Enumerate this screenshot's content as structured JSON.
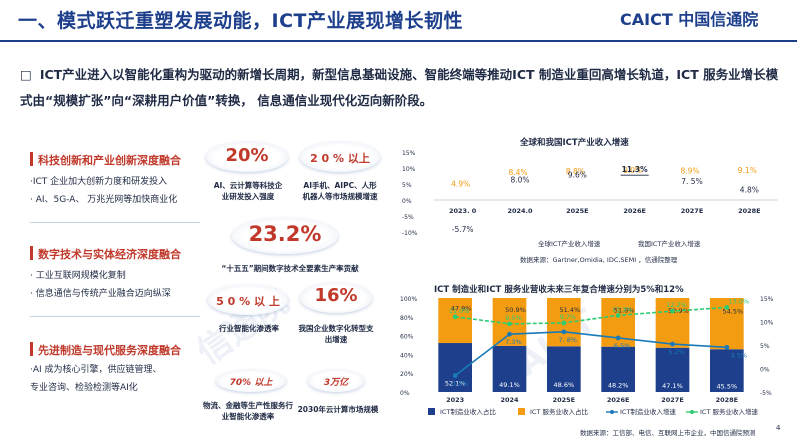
{
  "header": {
    "title": "一、模式跃迁重塑发展动能，ICT产业展现增长韧性",
    "brand": "CAICT 中国信通院"
  },
  "intro": {
    "bullet": "□",
    "text": "ICT产业进入以智能化重构为驱动的新增长周期，新型信息基础设施、智能终端等推动ICT 制造业重回高增长轨道，ICT 服务业增长模式由“规模扩张”向“深耕用户价值”转换， 信息通信业现代化迈向新阶段。"
  },
  "sections": [
    {
      "title": "科技创新和产业创新深度融合",
      "items": [
        "·ICT    企业加大创新力度和研发投入",
        "·  AI、5G-A、  万兆光网等加快商业化"
      ]
    },
    {
      "title": "数字技术与实体经济深度融合",
      "items": [
        "·  工业互联网规模化复制",
        "·  信息通信与传统产业融合迈向纵深"
      ]
    },
    {
      "title": "先进制造与现代服务深度融合",
      "items": [
        "·AI  成为核心引擎，供应链管理、",
        "   专业咨询、检验检测等AI化"
      ]
    }
  ],
  "stats": {
    "s1_value": "20%",
    "s1_caption": "AI、云计算等科技企业研发投入强度",
    "s2_value": "2 0 % 以上",
    "s2_caption": "AI手机、AIPC、人形机器人等市场规模增速",
    "s3_value": "23.2%",
    "s3_caption": "“十五五”期间数字技术全要素生产率贡献",
    "s4_value": "5 0 % 以 上",
    "s4_caption": "行业智能化渗透率",
    "s5_value": "16%",
    "s5_caption": "我国企业数字化转型支出增速",
    "s6_value": "70% 以上",
    "s6_caption": "物流、金融等生产性服务行业智能化渗透率",
    "s7_value": "3万亿",
    "s7_caption": "2030年云计算市场规模"
  },
  "watermarks": [
    "信通院",
    "CAICT"
  ],
  "page_number": "4",
  "colors": {
    "brand_blue": "#1d3f8c",
    "accent_red": "#c0392b",
    "orange": "#f39c12",
    "green": "#2ecc71"
  },
  "chart_data": [
    {
      "type": "table",
      "title": "全球和我国ICT产业收入增速",
      "categories": [
        "2023. 0",
        "2024.0",
        "2025E",
        "2026E",
        "2027E",
        "2028E"
      ],
      "y_tick_labels": [
        "15%",
        "10%",
        "5%",
        "0%",
        "-5%",
        "-10%"
      ],
      "ylim": [
        -10,
        15
      ],
      "series": [
        {
          "name": "全球ICT产业收入增速",
          "color": "#f39c12",
          "values": [
            4.9,
            8.4,
            8.8,
            9.0,
            8.9,
            9.1
          ],
          "labels": [
            "4.9%",
            "8.4%",
            "8.8%",
            "9.0%",
            "8.9%",
            "9.1%"
          ]
        },
        {
          "name": "我国ICT产业收入增速",
          "color": "#1f2a44",
          "values": [
            -5.7,
            8.0,
            9.6,
            11.3,
            7.5,
            4.8
          ],
          "labels": [
            "-5.7%",
            "8.0%",
            "9.6%",
            "11.3%",
            "7. 5%",
            "4.8%"
          ]
        }
      ],
      "source": "数据来源：Gartner,Omidia, IDC,SEMI ，信通院整理"
    },
    {
      "type": "bar",
      "title": "ICT 制造业和ICT 服务业营收未来三年复合增速分别为5%和12%",
      "categories": [
        "2023",
        "2024",
        "2025E",
        "2026E",
        "2027E",
        "2028E"
      ],
      "y_left_ticks": [
        "100%",
        "80%",
        "60%",
        "40%",
        "20%",
        "0%"
      ],
      "y_right_ticks": [
        "15%",
        "10%",
        "5%",
        "0%",
        "-5%"
      ],
      "ylim_right": [
        -5,
        15
      ],
      "series": [
        {
          "name": "ICT制造业收入占比",
          "kind": "bar",
          "color": "#1d3f8c",
          "values": [
            52.1,
            49.1,
            48.6,
            48.2,
            47.1,
            45.5
          ],
          "labels": [
            "52.1%",
            "49.1%",
            "48.6%",
            "48.2%",
            "47.1%",
            "45.5%"
          ]
        },
        {
          "name": "ICT 服务业收入占比",
          "kind": "bar",
          "color": "#f39c12",
          "values": [
            47.9,
            50.9,
            51.4,
            51.8,
            52.9,
            54.5
          ],
          "labels": [
            "47.9%",
            "50.9%",
            "51.4%",
            "51.8%",
            "52.9%",
            "54.5%"
          ]
        },
        {
          "name": "ICT制造业收入增速",
          "kind": "line",
          "color": "#1a7ab8",
          "values": [
            -1.5,
            7.3,
            7.8,
            6.5,
            5.2,
            4.5
          ],
          "labels": [
            "-1.5%",
            "7.3%",
            "7. 8%",
            "6.5%",
            "5.2%",
            "4.5%"
          ]
        },
        {
          "name": "ICT 服务业收入增速",
          "kind": "line",
          "color": "#2ecc71",
          "values": [
            11.0,
            9.5,
            9.7,
            11.3,
            12.2,
            13.0
          ],
          "labels": [
            "11.0%",
            "9.5%",
            "9.7%",
            "11.3%",
            "12.2%",
            "13.0%"
          ]
        }
      ],
      "source": "数据来源：工信部、电信、互联网上市企业，中国信通院预测"
    }
  ]
}
